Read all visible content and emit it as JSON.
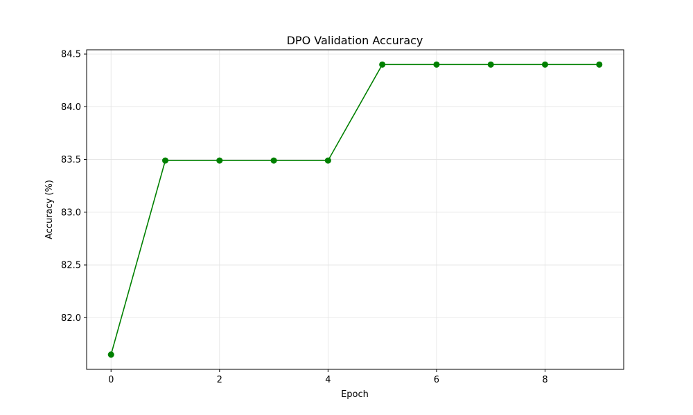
{
  "chart_data": {
    "type": "line",
    "title": "DPO Validation Accuracy",
    "xlabel": "Epoch",
    "ylabel": "Accuracy (%)",
    "x": [
      0,
      1,
      2,
      3,
      4,
      5,
      6,
      7,
      8,
      9
    ],
    "series": [
      {
        "values": [
          81.65,
          83.49,
          83.49,
          83.49,
          83.49,
          84.4,
          84.4,
          84.4,
          84.4,
          84.4
        ],
        "color": "#008000",
        "marker": "circle"
      }
    ],
    "xlim": [
      -0.45,
      9.45
    ],
    "ylim": [
      81.51,
      84.54
    ],
    "xticks": [
      "0",
      "2",
      "4",
      "6",
      "8"
    ],
    "yticks": [
      "82.0",
      "82.5",
      "83.0",
      "83.5",
      "84.0",
      "84.5"
    ],
    "grid": true
  }
}
